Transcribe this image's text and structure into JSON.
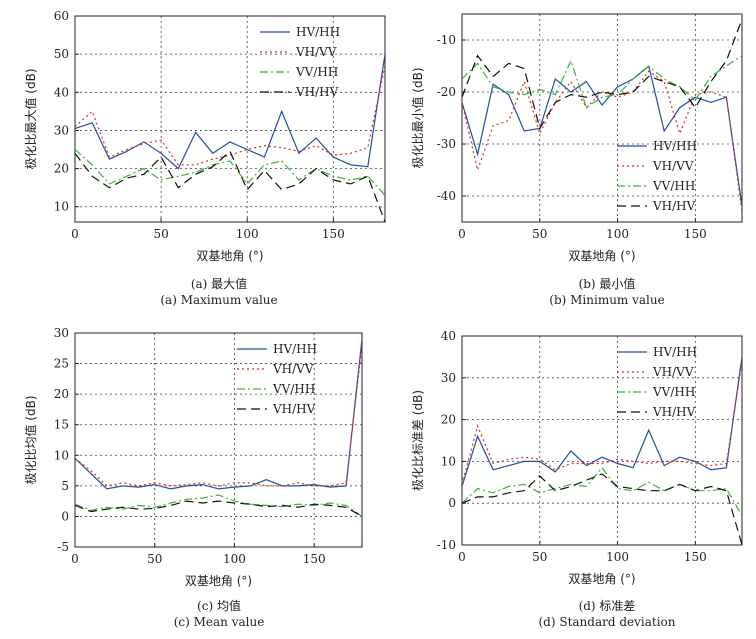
{
  "colors": {
    "hv_hh": "#1f4fa0",
    "vh_vv": "#e8261e",
    "vv_hh": "#3bb43a",
    "vh_hv": "#111111",
    "axis": "#222222",
    "grid": "#444444"
  },
  "chart_data": [
    {
      "type": "line",
      "panel": "a",
      "caption_cn": "(a) 最大值",
      "caption_en": "(a) Maximum value",
      "xlabel": "双基地角 (°)",
      "ylabel": "极化比最大值 (dB)",
      "xlim": [
        0,
        180
      ],
      "ylim": [
        6,
        60
      ],
      "xticks": [
        0,
        50,
        100,
        150
      ],
      "yticks": [
        10,
        20,
        30,
        40,
        50,
        60
      ],
      "legend_position": "top-right",
      "x": [
        0,
        10,
        20,
        30,
        40,
        50,
        60,
        70,
        80,
        90,
        100,
        110,
        120,
        130,
        140,
        150,
        160,
        170,
        180
      ],
      "series": [
        {
          "name": "HV/HH",
          "color_key": "hv_hh",
          "dash": "solid",
          "values": [
            30.5,
            32,
            22.5,
            24.5,
            27,
            24,
            20,
            29.5,
            24,
            27,
            25,
            23,
            35,
            24,
            28,
            23,
            21,
            20.5,
            50
          ]
        },
        {
          "name": "VH/VV",
          "color_key": "vh_vv",
          "dash": "dotted",
          "values": [
            31,
            35,
            23,
            25,
            26.5,
            27.5,
            21,
            21,
            22.5,
            23.5,
            25,
            26,
            25.5,
            24.5,
            26,
            23.5,
            24,
            25.5,
            47
          ]
        },
        {
          "name": "VV/HH",
          "color_key": "vv_hh",
          "dash": "dashdot",
          "values": [
            25,
            21,
            16,
            18,
            20,
            17,
            18,
            19,
            21,
            22,
            16,
            21,
            22,
            17,
            20,
            18,
            17,
            18,
            13
          ]
        },
        {
          "name": "VH/HV",
          "color_key": "vh_hv",
          "dash": "dashed",
          "values": [
            24,
            18,
            15,
            17.5,
            18.5,
            23,
            15,
            18.5,
            20.5,
            24.5,
            14.5,
            19.5,
            14.5,
            16,
            20,
            17,
            16,
            18,
            6
          ]
        }
      ]
    },
    {
      "type": "line",
      "panel": "b",
      "caption_cn": "(b) 最小值",
      "caption_en": "(b) Minimum value",
      "xlabel": "双基地角 (°)",
      "ylabel": "极化比最小值 (dB)",
      "xlim": [
        0,
        180
      ],
      "ylim": [
        -45,
        -5
      ],
      "xticks": [
        0,
        50,
        100,
        150
      ],
      "yticks": [
        -40,
        -30,
        -20,
        -10
      ],
      "legend_position": "bottom-right",
      "x": [
        0,
        10,
        20,
        30,
        40,
        50,
        60,
        70,
        80,
        90,
        100,
        110,
        120,
        130,
        140,
        150,
        160,
        170,
        180
      ],
      "series": [
        {
          "name": "HV/HH",
          "color_key": "hv_hh",
          "dash": "solid",
          "values": [
            -22,
            -32,
            -18.5,
            -20.5,
            -27.5,
            -27,
            -17.5,
            -20,
            -18,
            -22.5,
            -19,
            -17.5,
            -15,
            -27.5,
            -23,
            -21,
            -22,
            -21,
            -42
          ]
        },
        {
          "name": "VH/VV",
          "color_key": "vh_vv",
          "dash": "dotted",
          "values": [
            -22,
            -35,
            -26.5,
            -25.5,
            -18,
            -28,
            -22,
            -18,
            -23,
            -20,
            -21,
            -20,
            -16,
            -18,
            -28,
            -20.5,
            -20,
            -21,
            -43
          ]
        },
        {
          "name": "VV/HH",
          "color_key": "vv_hh",
          "dash": "dashdot",
          "values": [
            -17.5,
            -14.5,
            -19,
            -20,
            -20.5,
            -19.5,
            -20.5,
            -14,
            -23,
            -21,
            -20.5,
            -17.5,
            -15,
            -17.5,
            -19,
            -21.5,
            -17,
            -15,
            -13
          ]
        },
        {
          "name": "VH/HV",
          "color_key": "vh_hv",
          "dash": "dashed",
          "values": [
            -21,
            -13,
            -17,
            -14.5,
            -15.5,
            -27,
            -22,
            -20.5,
            -21,
            -20,
            -20.5,
            -20,
            -17,
            -18,
            -19,
            -23,
            -18,
            -14,
            -6
          ]
        }
      ]
    },
    {
      "type": "line",
      "panel": "c",
      "caption_cn": "(c) 均值",
      "caption_en": "(c) Mean value",
      "xlabel": "双基地角 (°)",
      "ylabel": "极化比均值 (dB)",
      "xlim": [
        0,
        180
      ],
      "ylim": [
        -5,
        30
      ],
      "xticks": [
        0,
        50,
        100,
        150
      ],
      "yticks": [
        -5,
        0,
        5,
        10,
        15,
        20,
        25,
        30
      ],
      "legend_position": "top-right",
      "x": [
        0,
        10,
        20,
        30,
        40,
        50,
        60,
        70,
        80,
        90,
        100,
        110,
        120,
        130,
        140,
        150,
        160,
        170,
        180
      ],
      "series": [
        {
          "name": "HV/HH",
          "color_key": "hv_hh",
          "dash": "solid",
          "values": [
            9.5,
            7,
            4.5,
            5,
            4.8,
            5.2,
            4.5,
            5,
            5.2,
            4.5,
            4.8,
            5,
            6,
            5,
            5,
            5.2,
            4.8,
            5,
            29
          ]
        },
        {
          "name": "VH/VV",
          "color_key": "vh_vv",
          "dash": "dotted",
          "values": [
            9.5,
            7.5,
            5,
            5.5,
            5,
            5.5,
            5,
            5.2,
            5.5,
            5,
            5.5,
            5.5,
            5,
            5,
            5.5,
            5,
            5,
            5.5,
            28
          ]
        },
        {
          "name": "VV/HH",
          "color_key": "vv_hh",
          "dash": "dashdot",
          "values": [
            2,
            1,
            1.5,
            1.2,
            1.8,
            1.5,
            2.2,
            2.8,
            3,
            3.5,
            2.5,
            2,
            1.8,
            1.6,
            2,
            1.8,
            2.2,
            1.8,
            0
          ]
        },
        {
          "name": "VH/HV",
          "color_key": "vh_hv",
          "dash": "dashed",
          "values": [
            1.8,
            0.8,
            1.2,
            1.5,
            1.2,
            1.3,
            1.8,
            2.5,
            2.2,
            2.5,
            2.2,
            2,
            1.6,
            1.8,
            1.5,
            2,
            1.8,
            1.5,
            0
          ]
        }
      ]
    },
    {
      "type": "line",
      "panel": "d",
      "caption_cn": "(d) 标准差",
      "caption_en": "(d) Standard deviation",
      "xlabel": "双基地角 (°)",
      "ylabel": "极化比标准差 (dB)",
      "xlim": [
        0,
        180
      ],
      "ylim": [
        -10,
        40
      ],
      "xticks": [
        0,
        50,
        100,
        150
      ],
      "yticks": [
        -10,
        0,
        10,
        20,
        30,
        40
      ],
      "legend_position": "top-right",
      "x": [
        0,
        10,
        20,
        30,
        40,
        50,
        60,
        70,
        80,
        90,
        100,
        110,
        120,
        130,
        140,
        150,
        160,
        170,
        180
      ],
      "series": [
        {
          "name": "HV/HH",
          "color_key": "hv_hh",
          "dash": "solid",
          "values": [
            4,
            16,
            8,
            9,
            10,
            10,
            7.5,
            12.5,
            9,
            11,
            9.5,
            8.5,
            17.5,
            9,
            11,
            10,
            8,
            8.5,
            35
          ]
        },
        {
          "name": "VH/VV",
          "color_key": "vh_vv",
          "dash": "dotted",
          "values": [
            4.5,
            18.5,
            9.5,
            10.5,
            11,
            10.5,
            8,
            9.5,
            9.5,
            9.5,
            10.5,
            10,
            9.5,
            10,
            10,
            9.5,
            9,
            9.5,
            34
          ]
        },
        {
          "name": "VV/HH",
          "color_key": "vv_hh",
          "dash": "dashdot",
          "values": [
            0,
            3.5,
            2.5,
            4,
            4.5,
            2.5,
            3.5,
            4.5,
            4,
            8.5,
            3.5,
            3,
            5,
            3,
            4.5,
            3,
            3,
            3.5,
            -3
          ]
        },
        {
          "name": "VH/HV",
          "color_key": "vh_hv",
          "dash": "dashed",
          "values": [
            0,
            1.5,
            1.5,
            2.5,
            3,
            6.5,
            3,
            4,
            5.5,
            7,
            4,
            3.5,
            3,
            3,
            4.5,
            3,
            4,
            3,
            -10
          ]
        }
      ]
    }
  ]
}
